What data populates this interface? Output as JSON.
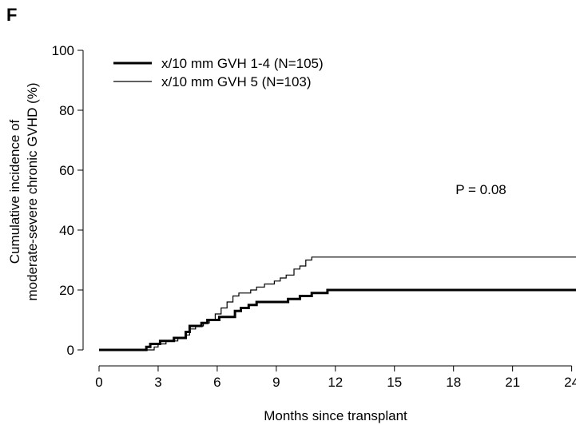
{
  "panel_label": "F",
  "chart_data": {
    "type": "line",
    "step": true,
    "title": "",
    "xlabel": "Months since transplant",
    "ylabel_lines": [
      "Cumulative incidence of",
      "moderate-severe chronic GVHD (%)"
    ],
    "xlim": [
      0,
      24.5
    ],
    "ylim": [
      0,
      100
    ],
    "xticks": [
      0,
      3,
      6,
      9,
      12,
      15,
      18,
      21,
      24
    ],
    "yticks": [
      0,
      20,
      40,
      60,
      80,
      100
    ],
    "grid": false,
    "legend_position": "top-left",
    "annotation": "P = 0.08",
    "series": [
      {
        "name": "x/10 mm GVH 1-4 (N=105)",
        "line_weight": "thick",
        "color": "#000000",
        "points": [
          [
            0,
            0
          ],
          [
            2.4,
            0
          ],
          [
            2.4,
            1
          ],
          [
            2.6,
            1
          ],
          [
            2.6,
            2
          ],
          [
            3.1,
            2
          ],
          [
            3.1,
            3
          ],
          [
            3.8,
            3
          ],
          [
            3.8,
            4
          ],
          [
            4.4,
            4
          ],
          [
            4.4,
            6
          ],
          [
            4.6,
            6
          ],
          [
            4.6,
            8
          ],
          [
            5.2,
            8
          ],
          [
            5.2,
            9
          ],
          [
            5.5,
            9
          ],
          [
            5.5,
            10
          ],
          [
            6.1,
            10
          ],
          [
            6.1,
            11
          ],
          [
            6.9,
            11
          ],
          [
            6.9,
            13
          ],
          [
            7.2,
            13
          ],
          [
            7.2,
            14
          ],
          [
            7.6,
            14
          ],
          [
            7.6,
            15
          ],
          [
            8.0,
            15
          ],
          [
            8.0,
            16
          ],
          [
            9.6,
            16
          ],
          [
            9.6,
            17
          ],
          [
            10.2,
            17
          ],
          [
            10.2,
            18
          ],
          [
            10.8,
            18
          ],
          [
            10.8,
            19
          ],
          [
            11.6,
            19
          ],
          [
            11.6,
            20
          ],
          [
            24.5,
            20
          ]
        ]
      },
      {
        "name": "x/10 mm GVH 5 (N=103)",
        "line_weight": "thin",
        "color": "#000000",
        "points": [
          [
            0,
            0
          ],
          [
            2.8,
            0
          ],
          [
            2.8,
            1
          ],
          [
            3.0,
            1
          ],
          [
            3.0,
            2
          ],
          [
            3.4,
            2
          ],
          [
            3.4,
            3
          ],
          [
            4.0,
            3
          ],
          [
            4.0,
            4
          ],
          [
            4.4,
            4
          ],
          [
            4.4,
            5
          ],
          [
            4.6,
            5
          ],
          [
            4.6,
            7
          ],
          [
            4.9,
            7
          ],
          [
            4.9,
            8
          ],
          [
            5.3,
            8
          ],
          [
            5.3,
            9
          ],
          [
            5.6,
            9
          ],
          [
            5.6,
            10
          ],
          [
            5.9,
            10
          ],
          [
            5.9,
            12
          ],
          [
            6.2,
            12
          ],
          [
            6.2,
            14
          ],
          [
            6.5,
            14
          ],
          [
            6.5,
            16
          ],
          [
            6.8,
            16
          ],
          [
            6.8,
            18
          ],
          [
            7.1,
            18
          ],
          [
            7.1,
            19
          ],
          [
            7.7,
            19
          ],
          [
            7.7,
            20
          ],
          [
            8.0,
            20
          ],
          [
            8.0,
            21
          ],
          [
            8.4,
            21
          ],
          [
            8.4,
            22
          ],
          [
            8.9,
            22
          ],
          [
            8.9,
            23
          ],
          [
            9.2,
            23
          ],
          [
            9.2,
            24
          ],
          [
            9.5,
            24
          ],
          [
            9.5,
            25
          ],
          [
            9.9,
            25
          ],
          [
            9.9,
            27
          ],
          [
            10.2,
            27
          ],
          [
            10.2,
            28
          ],
          [
            10.5,
            28
          ],
          [
            10.5,
            30
          ],
          [
            10.8,
            30
          ],
          [
            10.8,
            31
          ],
          [
            24.5,
            31
          ]
        ]
      }
    ]
  }
}
